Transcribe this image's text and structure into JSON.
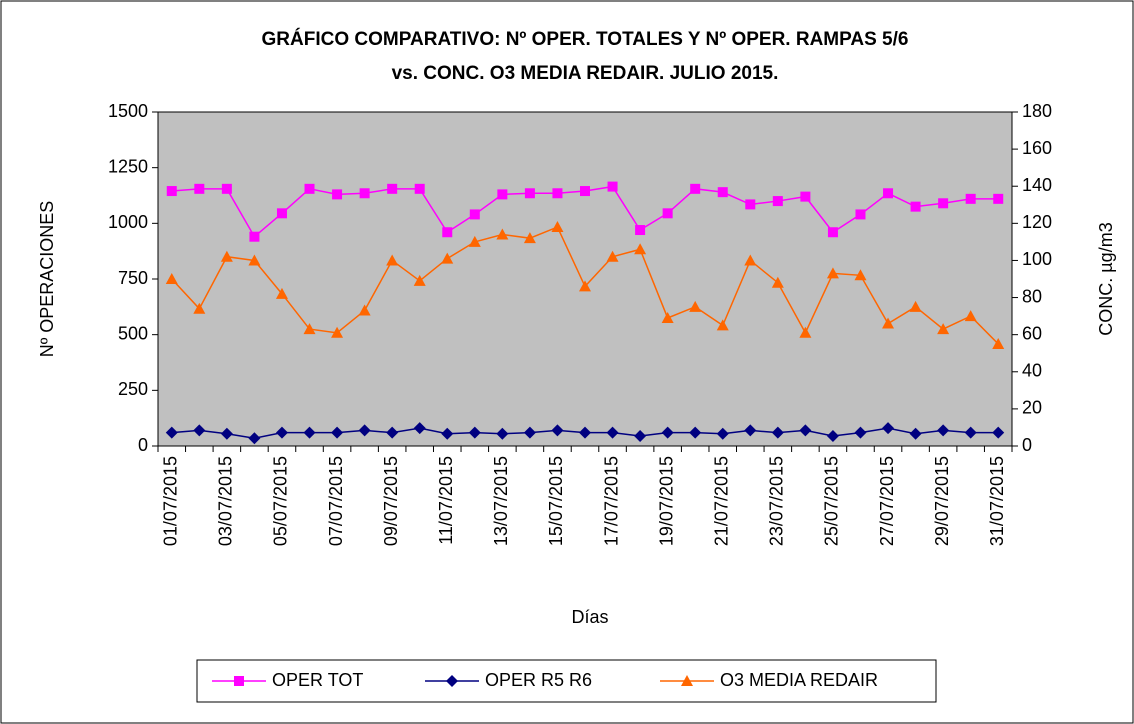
{
  "chart_data": {
    "type": "line",
    "title": [
      "GRÁFICO COMPARATIVO: Nº OPER. TOTALES Y Nº OPER. RAMPAS 5/6",
      "vs. CONC. O3 MEDIA REDAIR. JULIO 2015."
    ],
    "x_label": "Días",
    "y_label": "Nº OPERACIONES",
    "y2_label": "CONC. µg/m3",
    "categories": [
      "01/07/2015",
      null,
      "03/07/2015",
      null,
      "05/07/2015",
      null,
      "07/07/2015",
      null,
      "09/07/2015",
      null,
      "11/07/2015",
      null,
      "13/07/2015",
      null,
      "15/07/2015",
      null,
      "17/07/2015",
      null,
      "19/07/2015",
      null,
      "21/07/2015",
      null,
      "23/07/2015",
      null,
      "25/07/2015",
      null,
      "27/07/2015",
      null,
      "29/07/2015",
      null,
      "31/07/2015"
    ],
    "series": [
      {
        "name": "OPER TOT",
        "color": "#ff00ff",
        "marker": "square",
        "values": [
          1145,
          1155,
          1155,
          940,
          1045,
          1155,
          1130,
          1135,
          1155,
          1155,
          960,
          1040,
          1130,
          1135,
          1135,
          1145,
          1165,
          970,
          1045,
          1155,
          1140,
          1085,
          1100,
          1120,
          960,
          1040,
          1135,
          1075,
          1090,
          1110,
          1110
        ]
      },
      {
        "name": "OPER R5 R6",
        "color": "#000080",
        "marker": "diamond",
        "values": [
          60,
          70,
          55,
          35,
          60,
          60,
          60,
          70,
          60,
          80,
          55,
          60,
          55,
          60,
          70,
          60,
          60,
          45,
          60,
          60,
          55,
          70,
          60,
          70,
          45,
          60,
          80,
          55,
          70,
          60,
          60
        ]
      },
      {
        "name": "O3 MEDIA REDAIR",
        "color": "#ff6600",
        "marker": "triangle",
        "axis": "y2",
        "values": [
          90,
          74,
          102,
          100,
          82,
          63,
          61,
          73,
          100,
          89,
          101,
          110,
          114,
          112,
          118,
          86,
          102,
          106,
          69,
          75,
          65,
          100,
          88,
          61,
          93,
          92,
          66,
          75,
          63,
          70,
          55
        ]
      }
    ],
    "ylim": [
      0,
      1500
    ],
    "yticks": [
      0,
      250,
      500,
      750,
      1000,
      1250,
      1500
    ],
    "y2lim": [
      0,
      180
    ],
    "y2ticks": [
      0,
      20,
      40,
      60,
      80,
      100,
      120,
      140,
      160,
      180
    ],
    "legend": "bottom",
    "plot_background": "#c0c0c0"
  }
}
